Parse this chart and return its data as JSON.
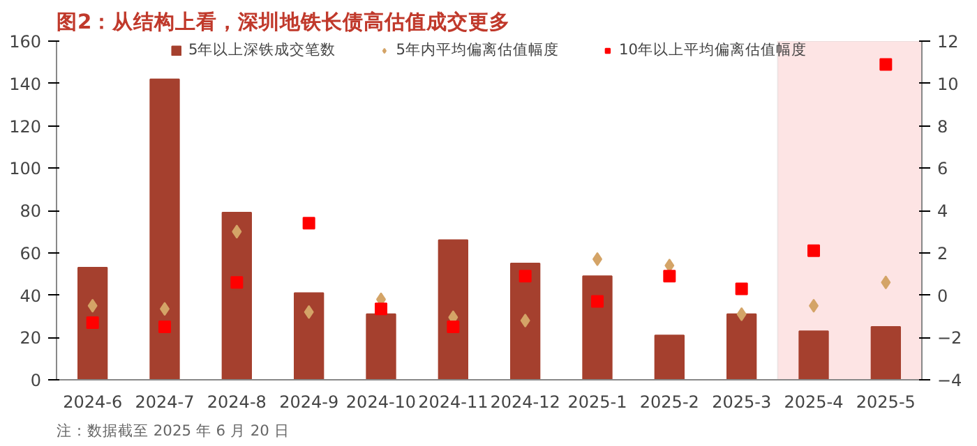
{
  "chart_data": {
    "type": "bar",
    "title": "图2：从结构上看，深圳地铁长债高估值成交更多",
    "categories": [
      "2024-6",
      "2024-7",
      "2024-8",
      "2024-9",
      "2024-10",
      "2024-11",
      "2024-12",
      "2025-1",
      "2025-2",
      "2025-3",
      "2025-4",
      "2025-5"
    ],
    "series": [
      {
        "name": "5年以上深铁成交笔数",
        "color": "#a5402e",
        "values": [
          53,
          142,
          79,
          41,
          31,
          66,
          55,
          49,
          21,
          31,
          23,
          25
        ]
      },
      {
        "name": "5年内平均偏离估值幅度",
        "type": "scatter",
        "marker": "diamond",
        "axis": "y2",
        "color": "#d4a467",
        "values": [
          -0.5,
          -0.65,
          3.0,
          -0.8,
          -0.2,
          -1.05,
          -1.2,
          1.7,
          1.4,
          -0.9,
          -0.5,
          0.6
        ]
      },
      {
        "name": "10年以上平均偏离估值幅度",
        "type": "scatter",
        "marker": "square",
        "axis": "y2",
        "color": "#ff0000",
        "values": [
          -1.3,
          -1.5,
          0.6,
          3.4,
          -0.65,
          -1.5,
          0.9,
          -0.3,
          0.9,
          0.3,
          2.1,
          10.9
        ]
      }
    ],
    "ylim": [
      0,
      160
    ],
    "yticks": [
      0,
      20,
      40,
      60,
      80,
      100,
      120,
      140,
      160
    ],
    "y2lim": [
      -4,
      12
    ],
    "y2ticks": [
      -4,
      -2,
      0,
      2,
      4,
      6,
      8,
      10,
      12
    ],
    "bands": [
      {
        "axis": "x",
        "from": "2025-4",
        "to": "2025-5",
        "color": "#fde4e4"
      }
    ],
    "annotations": [
      "注：数据截至 2025 年 6 月 20 日"
    ],
    "grid": false,
    "legend": "top"
  }
}
